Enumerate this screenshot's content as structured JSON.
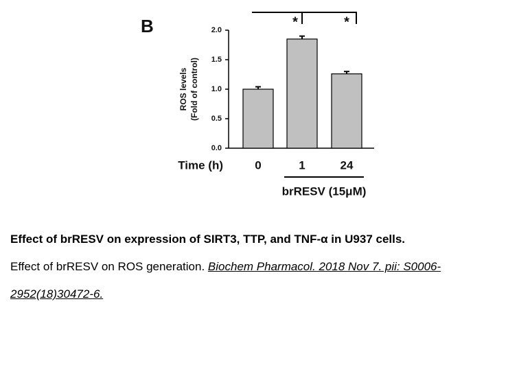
{
  "chart_data": {
    "type": "bar",
    "panel_label": "B",
    "categories": [
      "0",
      "1",
      "24"
    ],
    "values": [
      1.0,
      1.85,
      1.26
    ],
    "errors": [
      0.04,
      0.05,
      0.04
    ],
    "color": "#c0c0c0",
    "x_label": "Time (h)",
    "y_label": [
      "ROS levels",
      "(Fold of control)"
    ],
    "group_label": "brRESV (15μM)",
    "annotations": [
      "*",
      "*"
    ],
    "ylim": [
      0,
      2.0
    ],
    "yticks": [
      {
        "value": 0,
        "label": "0.0"
      },
      {
        "value": 0.5,
        "label": "0.5"
      },
      {
        "value": 1.0,
        "label": "1.0"
      },
      {
        "value": 1.5,
        "label": "1.5"
      },
      {
        "value": 2.0,
        "label": "2.0"
      }
    ]
  },
  "caption": {
    "title": "Effect of brRESV on expression of SIRT3, TTP, and TNF-α in U937 cells.",
    "text": "Effect of brRESV on ROS generation.",
    "link": "Biochem Pharmacol. 2018 Nov 7. pii: S0006-2952(18)30472-6."
  }
}
